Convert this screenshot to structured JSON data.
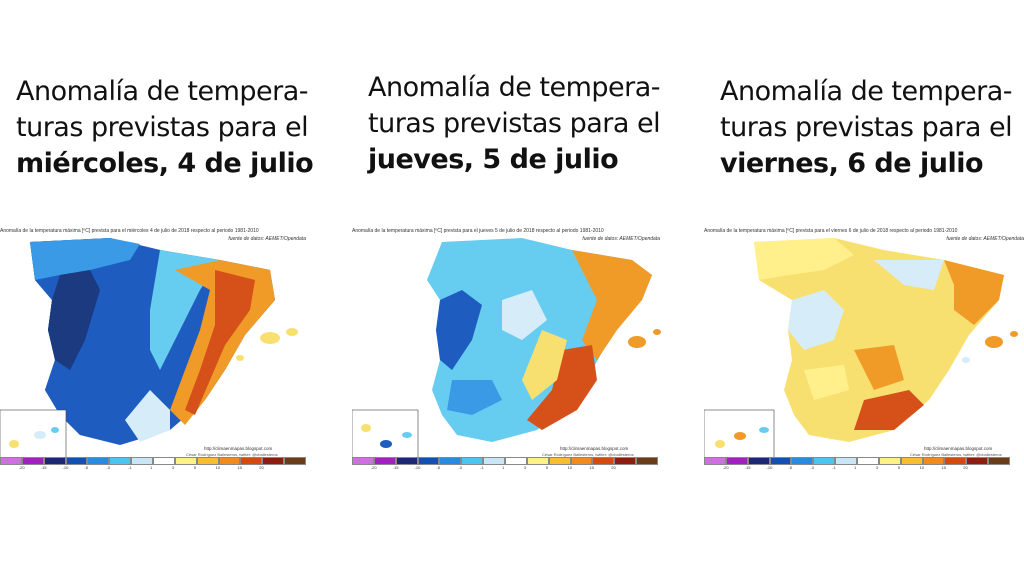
{
  "panels": [
    {
      "headline_line1": "Anomalía de tempera-",
      "headline_line2": "turas previstas para el",
      "headline_bold": "miércoles, 4 de julio",
      "map_title": "Anomalía de la temperatura máxima [ºC] prevista para el miércoles 4 de julio de 2018 respecto al periodo 1981-2010",
      "map_source": "fuente de datos: AEMET/Opendata",
      "credit_url": "http://climaenmapas.blogspot.com",
      "credit_author": "César Rodríguez Ballesteros, twitter: @cballesteros"
    },
    {
      "headline_line1": "Anomalía de tempera-",
      "headline_line2": "turas previstas para el",
      "headline_bold": "jueves, 5 de julio",
      "map_title": "Anomalía de la temperatura máxima [ºC] prevista para el jueves 5 de julio de 2018 respecto al periodo 1981-2010",
      "map_source": "fuente de datos: AEMET/Opendata",
      "credit_url": "http://climaenmapas.blogspot.com",
      "credit_author": "César Rodríguez Ballesteros, twitter: @cballesteros"
    },
    {
      "headline_line1": "Anomalía de tempera-",
      "headline_line2": "turas previstas para el",
      "headline_bold": "viernes, 6 de julio",
      "map_title": "Anomalía de la temperatura máxima [ºC] prevista para el viernes 6 de julio de 2018 respecto al periodo 1981-2010",
      "map_source": "fuente de datos: AEMET/Opendata",
      "credit_url": "http://climaenmapas.blogspot.com",
      "credit_author": "César Rodríguez Ballesteros, twitter: @cballesteros"
    }
  ],
  "legend": {
    "ticks": [
      "-20",
      "-15",
      "-10",
      "-5",
      "-3",
      "-1",
      "1",
      "3",
      "5",
      "10",
      "15",
      "20"
    ],
    "colors": [
      "#d070e0",
      "#a020c0",
      "#1b2a70",
      "#1450b4",
      "#2a8ae0",
      "#4cc4ee",
      "#c8e6f6",
      "#ffffff",
      "#fff08c",
      "#f5c030",
      "#f08c1e",
      "#d24a10",
      "#8c1e0c",
      "#6e3c14"
    ]
  },
  "map_colors": {
    "very_cold": "#1b3a80",
    "cold": "#1e5cc0",
    "cool": "#3a9ae6",
    "mild_cool": "#66ccf0",
    "neutral": "#d6ecf8",
    "warm": "#f8e070",
    "hot": "#f09a28",
    "very_hot": "#d6501a"
  }
}
